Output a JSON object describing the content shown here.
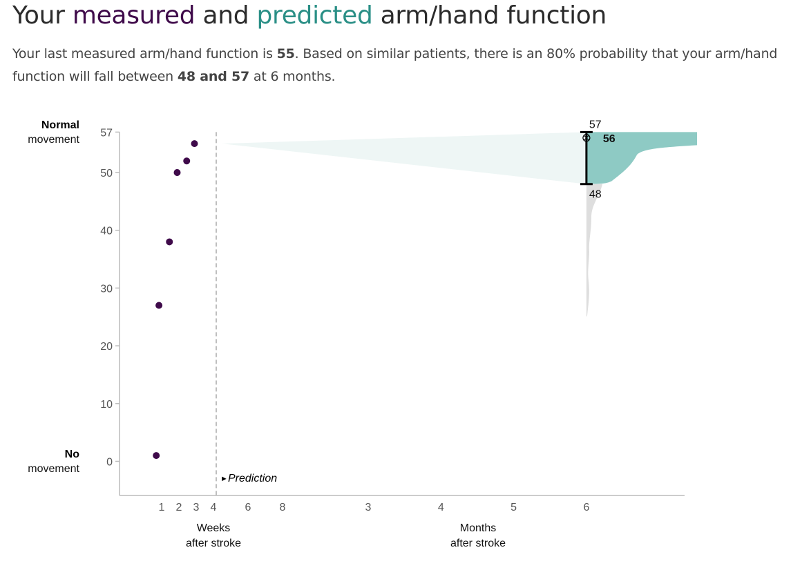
{
  "header": {
    "title_word1": "Your",
    "title_measured": "measured",
    "title_word2": "and",
    "title_predicted": "predicted",
    "title_rest": "arm/hand function",
    "summary_p1": "Your last measured arm/hand function is",
    "summary_last_value": "55",
    "summary_p2": ". Based on similar patients, there is an 80% probability that your arm/hand function will fall between",
    "summary_range": "48 and 57",
    "summary_p3": "at 6 months."
  },
  "colors": {
    "measured": "#3f0a4a",
    "predicted": "#2a8f86",
    "interval_fill": "#8ecac4",
    "tail_fill": "#dedede",
    "wedge_fill": "#eef6f5",
    "axis": "#bbbbbb",
    "divider": "#aaaaaa"
  },
  "chart_data": {
    "type": "scatter",
    "y_axis": {
      "range": [
        -6,
        57
      ],
      "ticks": [
        0,
        10,
        20,
        30,
        40,
        50,
        57
      ],
      "top_label_bold": "Normal",
      "top_label": "movement",
      "bottom_label_bold": "No",
      "bottom_label": "movement"
    },
    "x_axis_weeks": {
      "ticks": [
        "1",
        "2",
        "3",
        "4",
        "6",
        "8"
      ],
      "label_line1": "Weeks",
      "label_line2": "after stroke"
    },
    "x_axis_months": {
      "ticks": [
        "3",
        "4",
        "5",
        "6"
      ],
      "label_line1": "Months",
      "label_line2": "after stroke"
    },
    "prediction_label": "Prediction",
    "measured_points": [
      {
        "week": 0.7,
        "value": 1
      },
      {
        "week": 0.85,
        "value": 27
      },
      {
        "week": 1.45,
        "value": 38
      },
      {
        "week": 1.9,
        "value": 50
      },
      {
        "week": 2.45,
        "value": 52
      },
      {
        "week": 2.9,
        "value": 55
      }
    ],
    "prediction": {
      "at_month": 6,
      "median": 56,
      "lower": 48,
      "upper": 57,
      "distribution_min": 25,
      "median_label": "56",
      "lower_label": "48",
      "upper_label": "57"
    }
  }
}
